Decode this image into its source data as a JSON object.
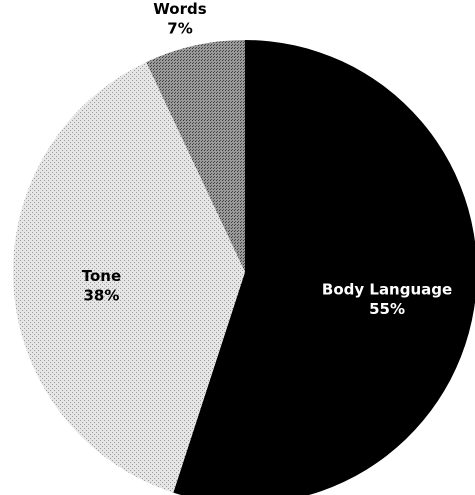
{
  "chart_data": {
    "type": "pie",
    "title": "",
    "start": "12 o'clock",
    "direction": "clockwise",
    "slices": [
      {
        "label": "Body Language",
        "value": 55,
        "value_label": "55%",
        "color": "#000000",
        "label_color": "#ffffff",
        "pattern": "solid"
      },
      {
        "label": "Tone",
        "value": 38,
        "value_label": "38%",
        "color": "#d9d9d9",
        "label_color": "#000000",
        "pattern": "dotted-light"
      },
      {
        "label": "Words",
        "value": 7,
        "value_label": "7%",
        "color": "#8c8c8c",
        "label_color": "#000000",
        "pattern": "dotted-dark"
      }
    ],
    "legend": "none"
  }
}
